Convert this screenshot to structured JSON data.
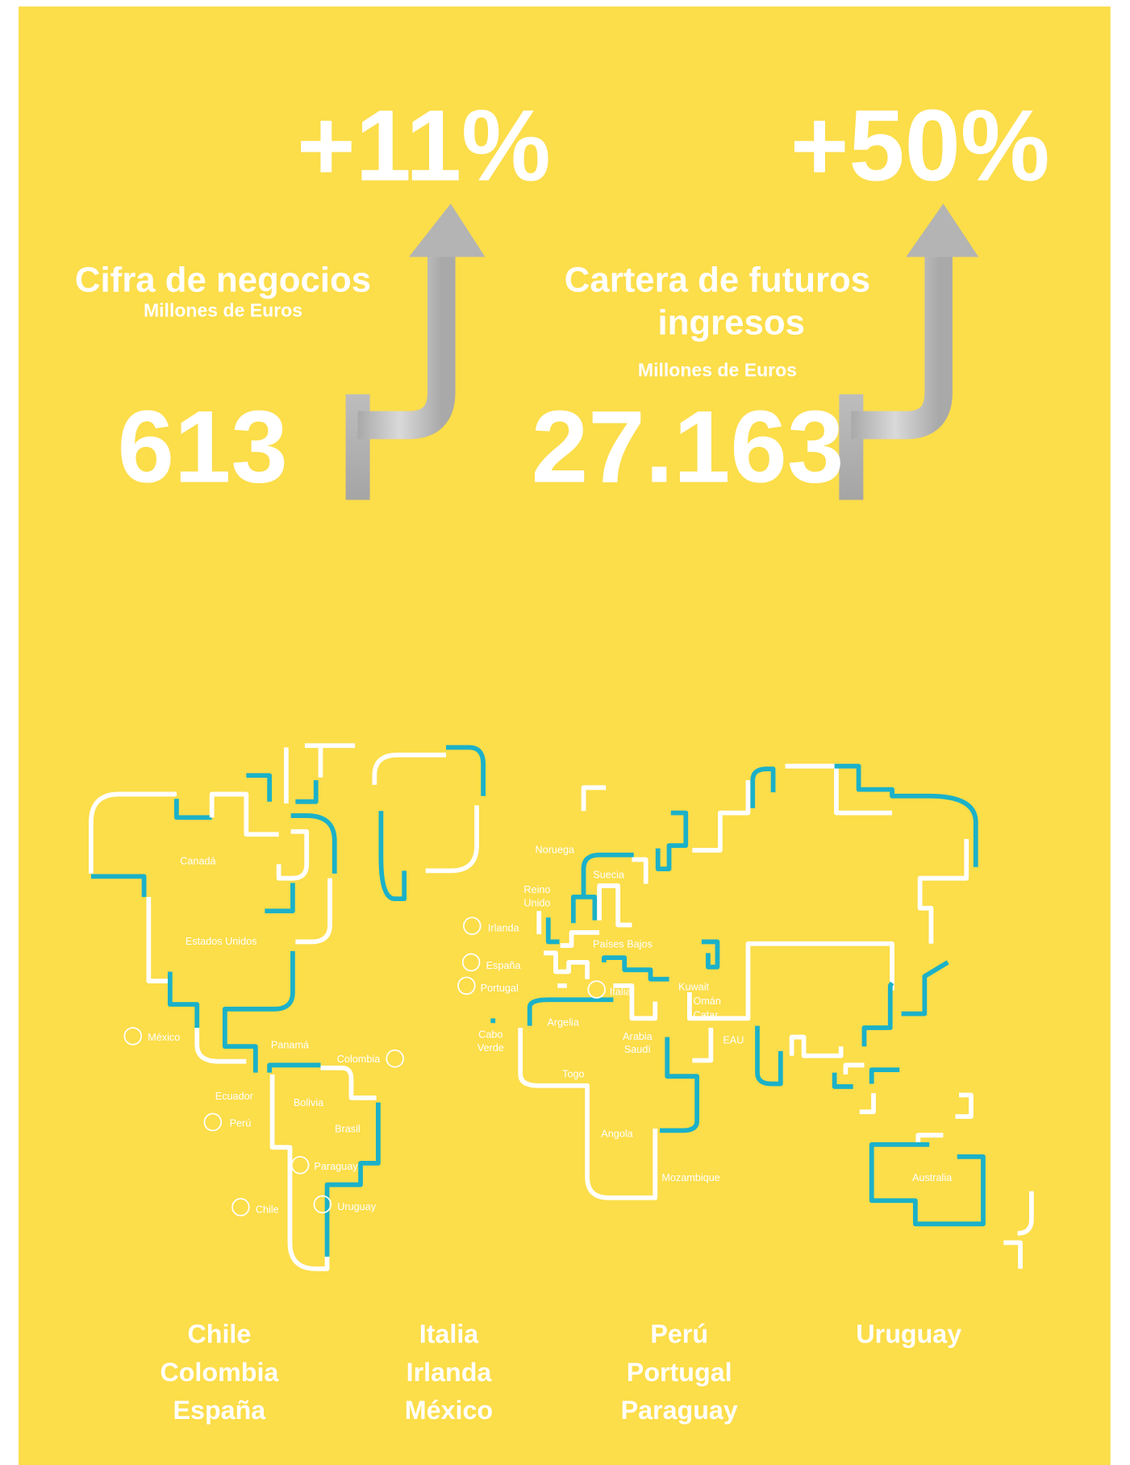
{
  "stats": [
    {
      "delta": "+11%",
      "title": [
        "Cifra de negocios"
      ],
      "subtitle": "Millones de Euros",
      "value": "613"
    },
    {
      "delta": "+50%",
      "title": [
        "Cartera de futuros",
        "ingresos"
      ],
      "subtitle": "Millones de Euros",
      "value": "27.163"
    }
  ],
  "map": {
    "labels": [
      [
        "Canadá"
      ],
      [
        "Estados Unidos"
      ],
      [
        "México"
      ],
      [
        "Panamá"
      ],
      [
        "Colombia"
      ],
      [
        "Ecuador"
      ],
      [
        "Bolivia"
      ],
      [
        "Perú"
      ],
      [
        "Brasil"
      ],
      [
        "Paraguay"
      ],
      [
        "Chile"
      ],
      [
        "Uruguay"
      ],
      [
        "Noruega"
      ],
      [
        "Suecia"
      ],
      [
        "Reino",
        "Unido"
      ],
      [
        "Irlanda"
      ],
      [
        "Países Bajos"
      ],
      [
        "España"
      ],
      [
        "Portugal"
      ],
      [
        "Italia"
      ],
      [
        "Kuwait"
      ],
      [
        "Omán"
      ],
      [
        "Catar"
      ],
      [
        "Argelia"
      ],
      [
        "Cabo",
        "Verde"
      ],
      [
        "Arabia",
        "Saudí"
      ],
      [
        "EAU"
      ],
      [
        "Togo"
      ],
      [
        "Angola"
      ],
      [
        "Mozambique"
      ],
      [
        "Australia"
      ]
    ]
  },
  "country_columns": [
    [
      "Chile",
      "Colombia",
      "España"
    ],
    [
      "Italia",
      "Irlanda",
      "México"
    ],
    [
      "Perú",
      "Portugal",
      "Paraguay"
    ],
    [
      "Uruguay"
    ]
  ]
}
